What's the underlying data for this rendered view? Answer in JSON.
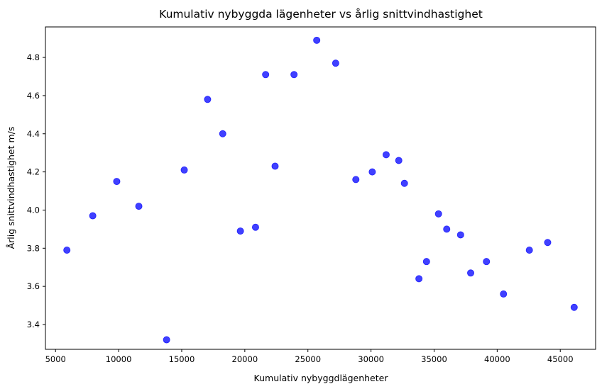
{
  "chart_data": {
    "type": "scatter",
    "title": "Kumulativ nybyggda lägenheter vs årlig snittvindhastighet",
    "xlabel": "Kumulativ nybyggdlägenheter",
    "ylabel": "Årlig snittvindhastighet m/s",
    "xlim": [
      4200,
      47800
    ],
    "ylim": [
      3.27,
      4.96
    ],
    "xticks": [
      5000,
      10000,
      15000,
      20000,
      25000,
      30000,
      35000,
      40000,
      45000
    ],
    "yticks": [
      3.4,
      3.6,
      3.8,
      4.0,
      4.2,
      4.4,
      4.6,
      4.8
    ],
    "xtick_labels": [
      "5000",
      "10000",
      "15000",
      "20000",
      "25000",
      "30000",
      "35000",
      "40000",
      "45000"
    ],
    "ytick_labels": [
      "3.4",
      "3.6",
      "3.8",
      "4.0",
      "4.2",
      "4.4",
      "4.6",
      "4.8"
    ],
    "grid": false,
    "marker_color": "#0000ff",
    "marker_alpha": 0.75,
    "points": [
      {
        "x": 5900,
        "y": 3.79
      },
      {
        "x": 7950,
        "y": 3.97
      },
      {
        "x": 9850,
        "y": 4.15
      },
      {
        "x": 11600,
        "y": 4.02
      },
      {
        "x": 13800,
        "y": 3.32
      },
      {
        "x": 15200,
        "y": 4.21
      },
      {
        "x": 17050,
        "y": 4.58
      },
      {
        "x": 18250,
        "y": 4.4
      },
      {
        "x": 19650,
        "y": 3.89
      },
      {
        "x": 20850,
        "y": 3.91
      },
      {
        "x": 21650,
        "y": 4.71
      },
      {
        "x": 22400,
        "y": 4.23
      },
      {
        "x": 23900,
        "y": 4.71
      },
      {
        "x": 25700,
        "y": 4.89
      },
      {
        "x": 27200,
        "y": 4.77
      },
      {
        "x": 28800,
        "y": 4.16
      },
      {
        "x": 30100,
        "y": 4.2
      },
      {
        "x": 31200,
        "y": 4.29
      },
      {
        "x": 32200,
        "y": 4.26
      },
      {
        "x": 32650,
        "y": 4.14
      },
      {
        "x": 33800,
        "y": 3.64
      },
      {
        "x": 34400,
        "y": 3.73
      },
      {
        "x": 35350,
        "y": 3.98
      },
      {
        "x": 36000,
        "y": 3.9
      },
      {
        "x": 37100,
        "y": 3.87
      },
      {
        "x": 37900,
        "y": 3.67
      },
      {
        "x": 39150,
        "y": 3.73
      },
      {
        "x": 40500,
        "y": 3.56
      },
      {
        "x": 42550,
        "y": 3.79
      },
      {
        "x": 44000,
        "y": 3.83
      },
      {
        "x": 46100,
        "y": 3.49
      }
    ]
  }
}
